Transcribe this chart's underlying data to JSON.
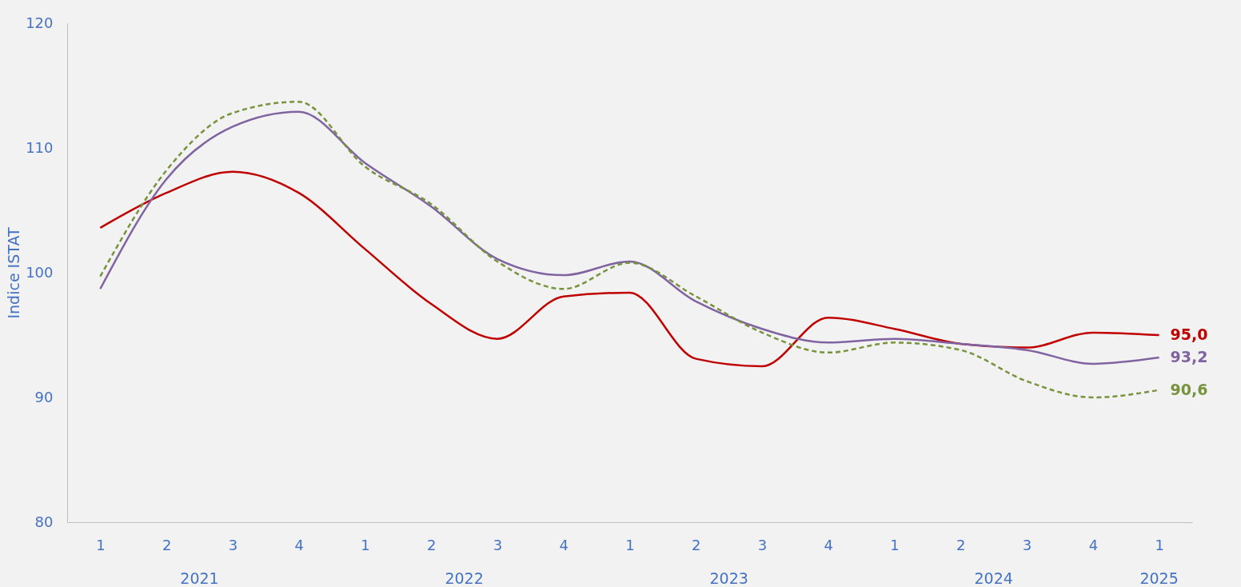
{
  "chart_data": {
    "type": "line",
    "ylabel": "Indice ISTAT",
    "categories": [
      "1",
      "2",
      "3",
      "4",
      "1",
      "2",
      "3",
      "4",
      "1",
      "2",
      "3",
      "4",
      "1",
      "2",
      "3",
      "4",
      "1"
    ],
    "annotations": [
      "2021",
      "2022",
      "2023",
      "2024",
      "2025"
    ],
    "series": [
      {
        "color": "#c00000",
        "line_style": "solid",
        "values": [
          103.6,
          106.4,
          108.1,
          106.4,
          101.9,
          97.5,
          94.7,
          98.1,
          98.4,
          93.1,
          92.5,
          96.4,
          95.5,
          94.3,
          94.0,
          95.2,
          95.0
        ],
        "value_labels": [
          null,
          null,
          null,
          null,
          null,
          null,
          null,
          null,
          null,
          null,
          null,
          null,
          null,
          null,
          null,
          null,
          "95,0"
        ]
      },
      {
        "color": "#8064a2",
        "line_style": "solid",
        "values": [
          98.7,
          107.5,
          111.7,
          112.9,
          108.8,
          105.3,
          101.1,
          99.8,
          100.9,
          97.7,
          95.5,
          94.4,
          94.7,
          94.3,
          93.8,
          92.7,
          93.2
        ],
        "value_labels": [
          null,
          null,
          null,
          null,
          null,
          null,
          null,
          null,
          null,
          null,
          null,
          null,
          null,
          null,
          null,
          null,
          "93,2"
        ]
      },
      {
        "color": "#77933c",
        "line_style": "dashed",
        "values": [
          99.7,
          108.2,
          112.8,
          113.7,
          108.5,
          105.5,
          100.9,
          98.7,
          100.8,
          98.1,
          95.2,
          93.6,
          94.4,
          93.8,
          91.3,
          90.0,
          90.6
        ],
        "value_labels": [
          null,
          null,
          null,
          null,
          null,
          null,
          null,
          null,
          null,
          null,
          null,
          null,
          null,
          null,
          null,
          null,
          "90,6"
        ]
      }
    ],
    "ylim": [
      80,
      120
    ],
    "yticks": [
      80,
      90,
      100,
      110,
      120
    ],
    "grid": false,
    "marker": "none"
  }
}
